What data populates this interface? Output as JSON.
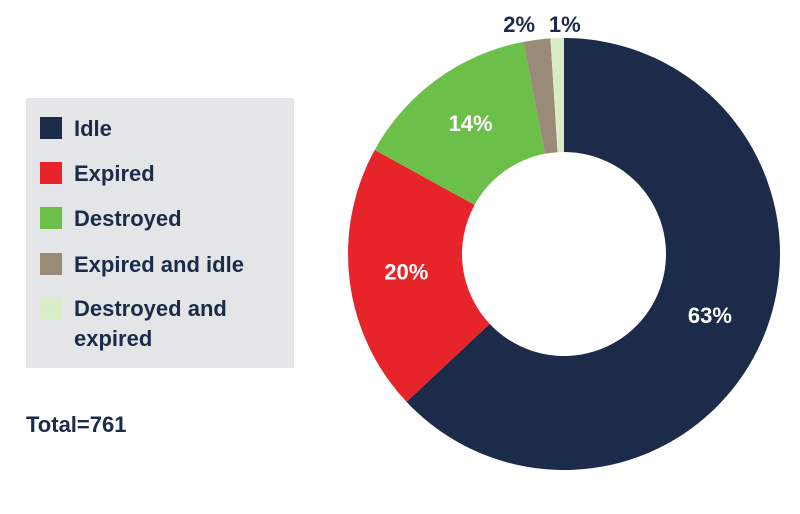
{
  "chart_data": {
    "type": "pie",
    "categories": [
      "Idle",
      "Expired",
      "Destroyed",
      "Expired and idle",
      "Destroyed and expired"
    ],
    "values": [
      63,
      20,
      14,
      2,
      1
    ],
    "data_labels": [
      "63%",
      "20%",
      "14%",
      "2%",
      "1%"
    ],
    "colors": [
      "#1c2b4a",
      "#e8242b",
      "#6cc04a",
      "#9a8a78",
      "#d9ecc6"
    ],
    "hole": "donut",
    "legend_position": "left",
    "legend": [
      {
        "label": "Idle",
        "color": "#1c2b4a"
      },
      {
        "label": "Expired",
        "color": "#e8242b"
      },
      {
        "label": "Destroyed",
        "color": "#6cc04a"
      },
      {
        "label": "Expired and idle",
        "color": "#9a8a78"
      },
      {
        "label": "Destroyed and expired",
        "color": "#d9ecc6"
      }
    ]
  },
  "total_text": "Total=761"
}
